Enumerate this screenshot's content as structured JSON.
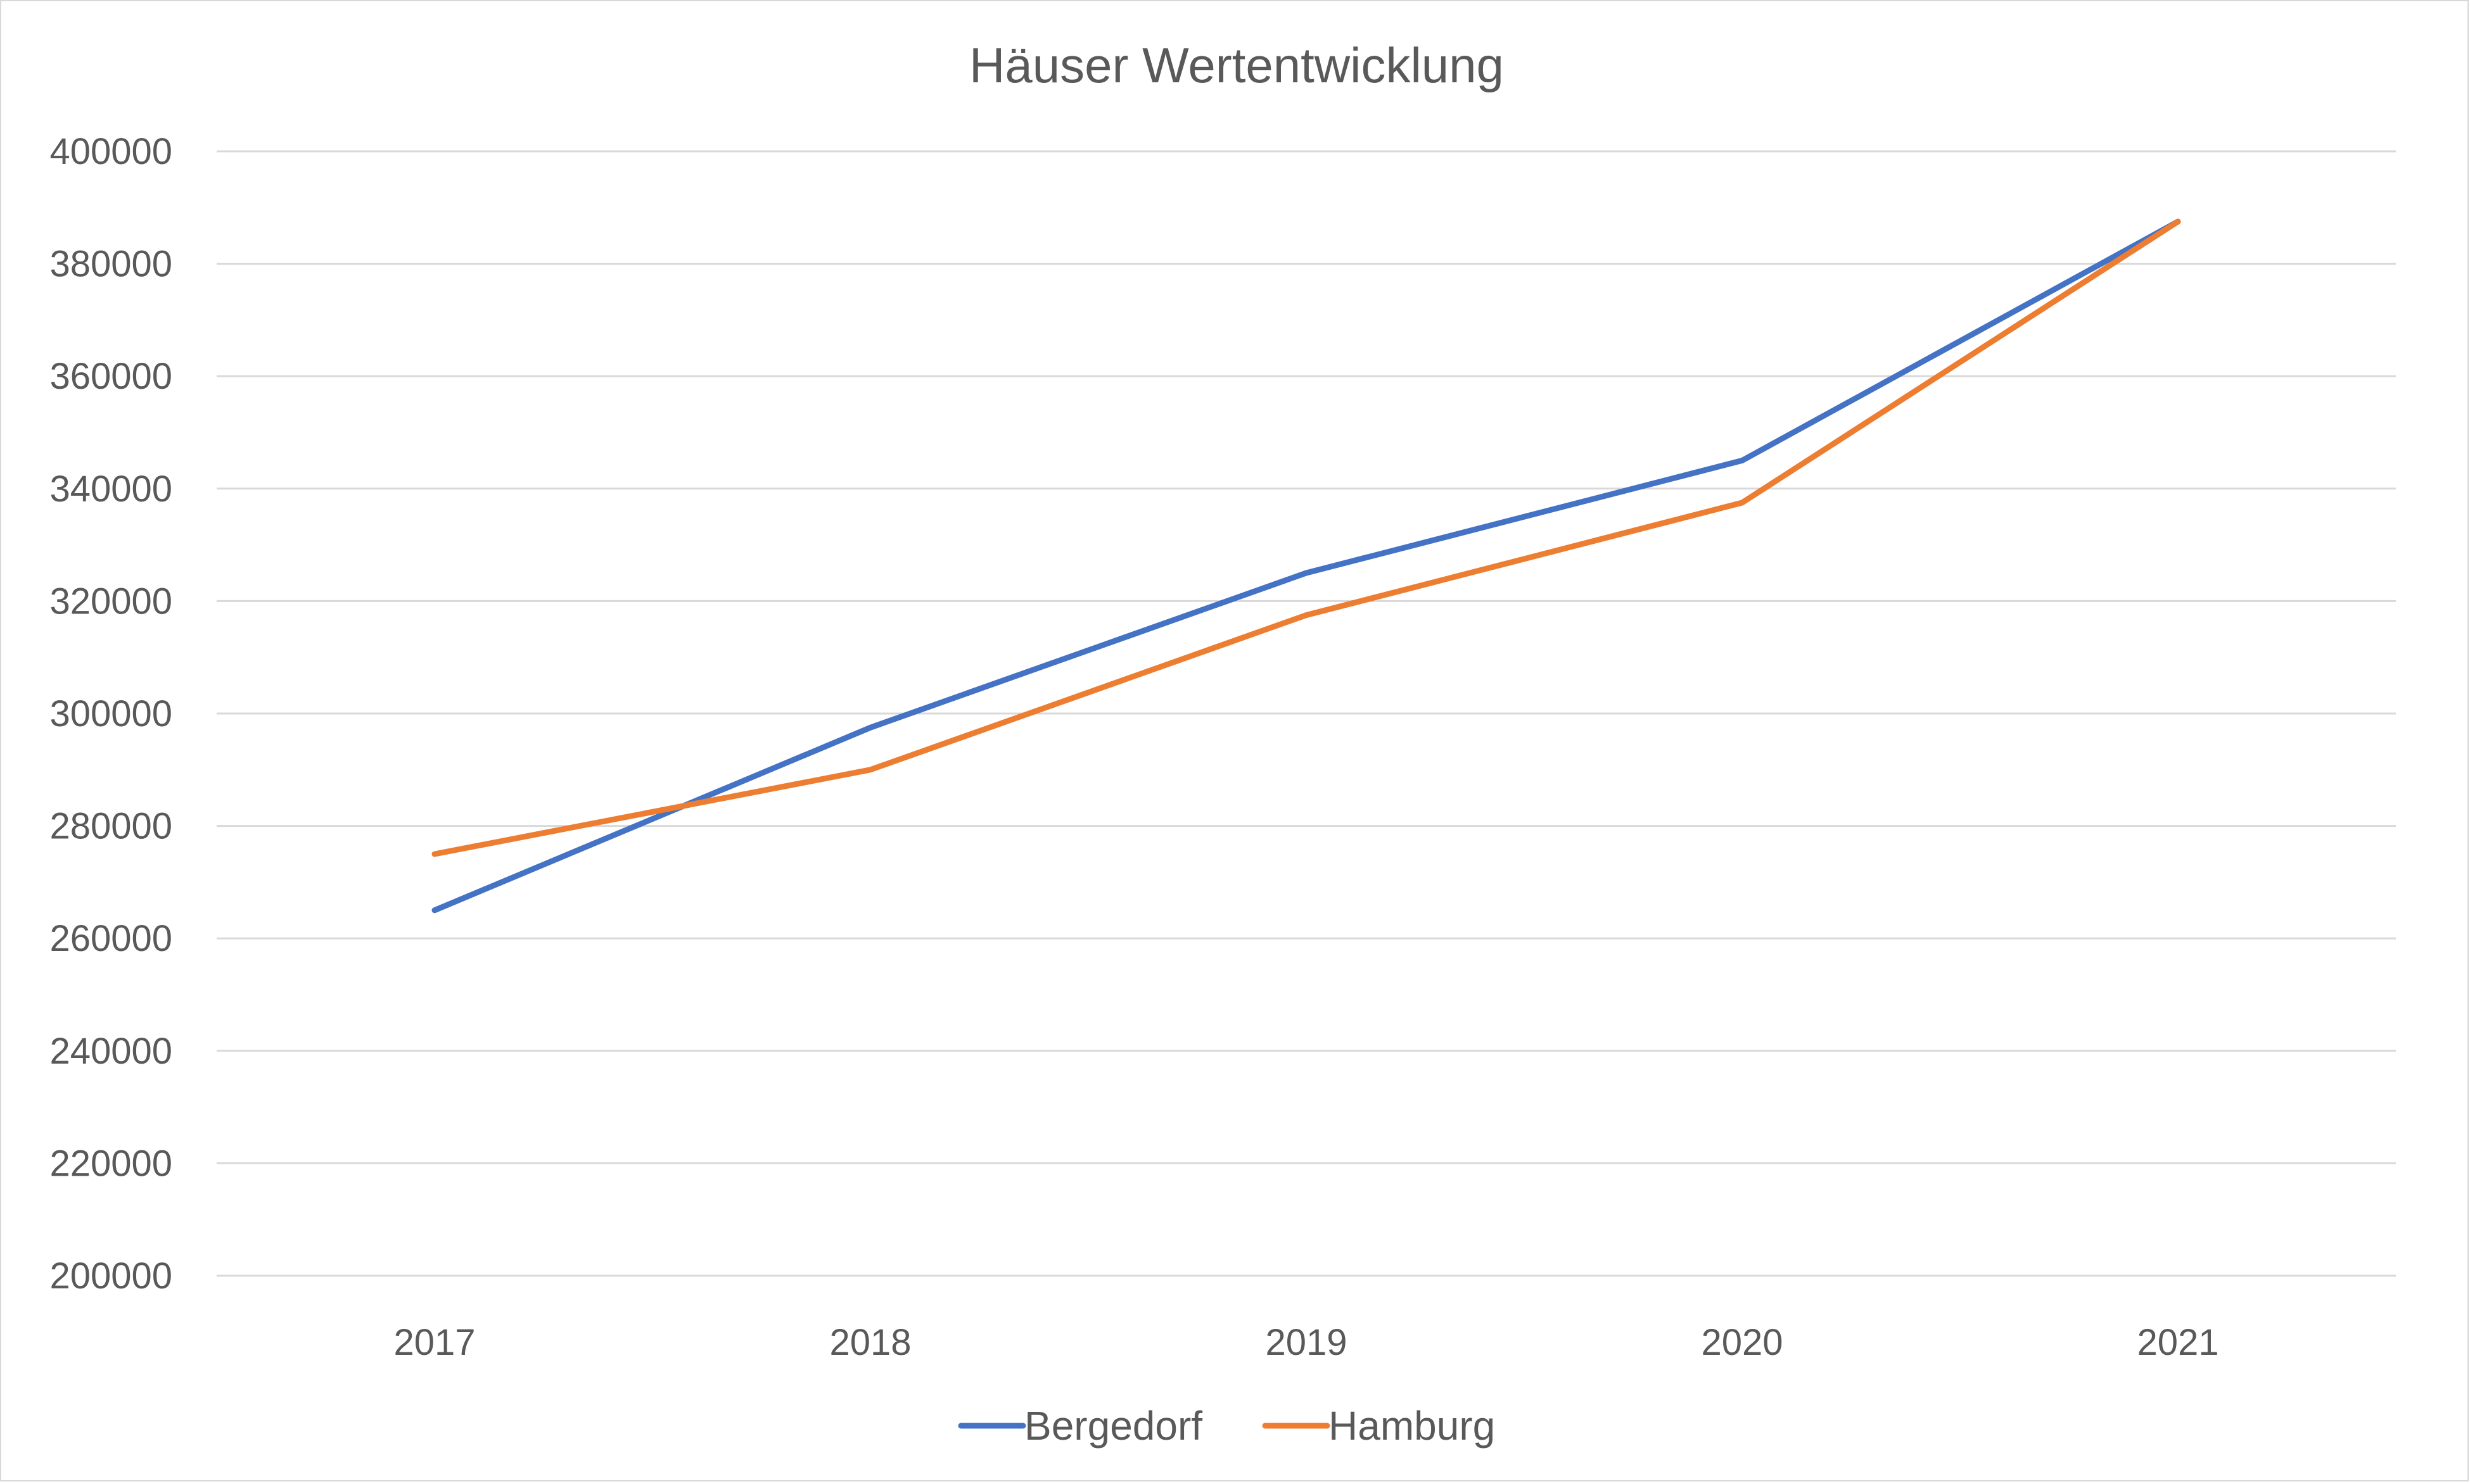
{
  "chart_data": {
    "type": "line",
    "title": "Häuser Wertentwicklung",
    "xlabel": "",
    "ylabel": "",
    "categories": [
      "2017",
      "2018",
      "2019",
      "2020",
      "2021"
    ],
    "ylim": [
      200000,
      400000
    ],
    "yticks": [
      "200000",
      "220000",
      "240000",
      "260000",
      "280000",
      "300000",
      "320000",
      "340000",
      "360000",
      "380000",
      "400000"
    ],
    "grid": true,
    "legend_position": "bottom",
    "series": [
      {
        "name": "Bergedorf",
        "color": "#4472C4",
        "values": [
          265000,
          297500,
          325000,
          345000,
          387500
        ]
      },
      {
        "name": "Hamburg",
        "color": "#ED7D31",
        "values": [
          275000,
          290000,
          317500,
          337500,
          387500
        ]
      }
    ]
  }
}
